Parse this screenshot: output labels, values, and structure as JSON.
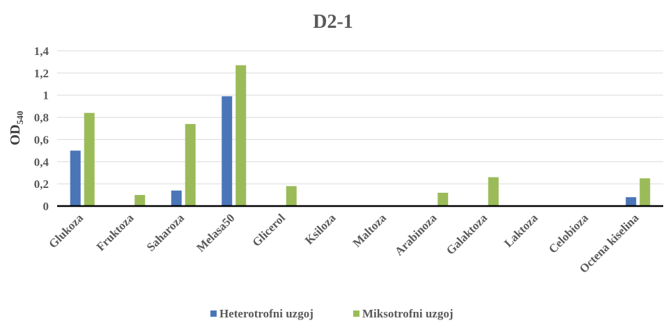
{
  "chart_data": {
    "type": "bar",
    "title": "D2-1",
    "ylabel_main": "OD",
    "ylabel_sub": "540",
    "xlabel": "",
    "ylim": [
      0,
      1.4
    ],
    "ytick_labels": [
      "0",
      "0,2",
      "0,4",
      "0,6",
      "0,8",
      "1",
      "1,2",
      "1,4"
    ],
    "ytick_values": [
      0,
      0.2,
      0.4,
      0.6,
      0.8,
      1.0,
      1.2,
      1.4
    ],
    "grid": true,
    "legend_position": "bottom",
    "categories": [
      "Glukoza",
      "Fruktoza",
      "Saharoza",
      "Melasa50",
      "Glicerol",
      "Ksiloza",
      "Maltoza",
      "Arabinoza",
      "Galaktoza",
      "Laktoza",
      "Celobioza",
      "Octena kiselina"
    ],
    "series": [
      {
        "name": "Heterotrofni uzgoj",
        "color": "#4a76b8",
        "values": [
          0.5,
          0,
          0.14,
          0.99,
          0,
          0,
          0,
          0,
          0,
          0,
          0,
          0.08
        ]
      },
      {
        "name": "Miksotrofni uzgoj",
        "color": "#9bbb59",
        "values": [
          0.84,
          0.1,
          0.74,
          1.27,
          0.18,
          0,
          0,
          0.12,
          0.26,
          0,
          0,
          0.25
        ]
      }
    ]
  }
}
